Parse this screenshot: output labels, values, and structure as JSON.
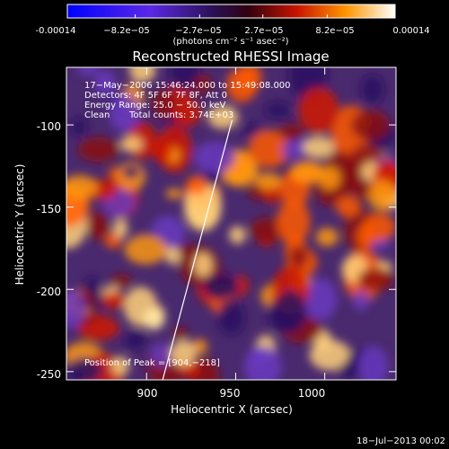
{
  "colorbar": {
    "ticks": [
      "-0.00014",
      "−8.2e−05",
      "−2.7e−05",
      "2.7e−05",
      "8.2e−05",
      "0.00014"
    ],
    "tick_values": [
      -0.00014,
      -8.2e-05,
      -2.7e-05,
      2.7e-05,
      8.2e-05,
      0.00014
    ],
    "min": -0.00014,
    "max": 0.00014,
    "unit_label": "(photons cm⁻² s⁻¹ asec⁻²)"
  },
  "chart_data": {
    "type": "heatmap",
    "title": "Reconstructed RHESSI Image",
    "xlabel": "Heliocentric X (arcsec)",
    "ylabel": "Heliocentric Y (arcsec)",
    "xlim": [
      855,
      1040
    ],
    "ylim": [
      -255,
      -65
    ],
    "xticks": [
      900,
      950,
      1000
    ],
    "yticks": [
      -100,
      -150,
      -200,
      -250
    ],
    "annotations": {
      "time": "17−May−2006 15:46:24.000 to 15:49:08.000",
      "detectors": "Detectors: 4F 5F 6F 7F 8F, Att 0",
      "energy": "Energy Range: 25.0 − 50.0 keV",
      "method": "Clean",
      "counts": "Total counts: 3.74E+03",
      "peak": "Position of Peak = [904,−218]"
    },
    "limb_line": [
      [
        909,
        -255
      ],
      [
        948,
        -97
      ]
    ],
    "peak": [
      904,
      -218
    ]
  },
  "footer": {
    "timestamp": "18−Jul−2013 00:02"
  },
  "colors": {
    "background": "#000000",
    "foreground": "#ffffff"
  }
}
